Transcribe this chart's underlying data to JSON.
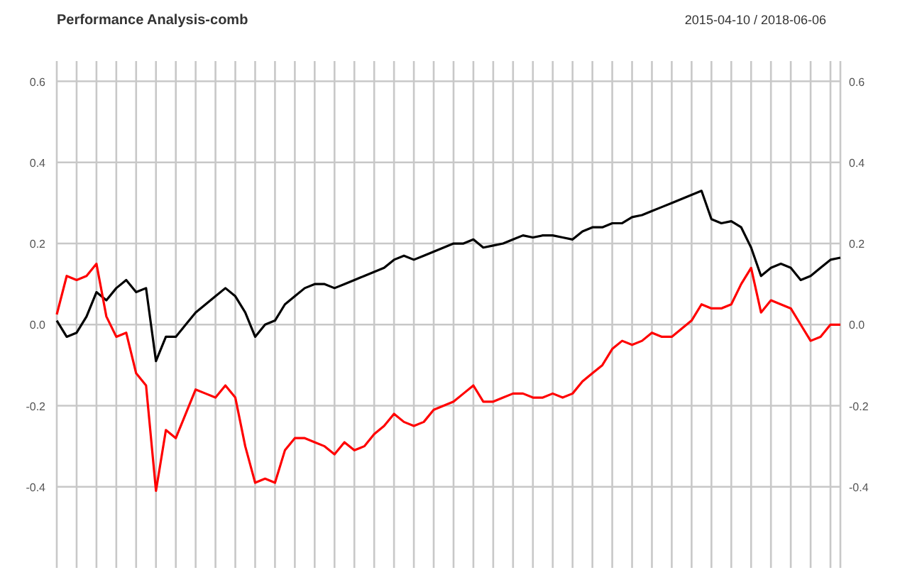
{
  "chart_data": {
    "type": "line",
    "title": "Performance Analysis-comb",
    "annotations": [
      "2015-04-10 / 2018-06-06"
    ],
    "categories": [
      null,
      null,
      null,
      null,
      null,
      null,
      null,
      null,
      null,
      null,
      null,
      null,
      null,
      null,
      null,
      null,
      null,
      null,
      null,
      null,
      null,
      null,
      null,
      null,
      null,
      null,
      null,
      null,
      null,
      null,
      null,
      null,
      null,
      null,
      null,
      null,
      null,
      null,
      null,
      null,
      null,
      null,
      null,
      null,
      null,
      null,
      null,
      null,
      null,
      null,
      null,
      null,
      null,
      null,
      null,
      null,
      null,
      null,
      null,
      null,
      null,
      null,
      null,
      null,
      null,
      null,
      null,
      null,
      null,
      null,
      null,
      null,
      null,
      null,
      null,
      null,
      null,
      null,
      null,
      null
    ],
    "series": [
      {
        "color": "#000000",
        "values": [
          0.01,
          -0.03,
          -0.02,
          0.02,
          0.08,
          0.06,
          0.09,
          0.11,
          0.08,
          0.09,
          -0.09,
          -0.03,
          -0.03,
          0.0,
          0.03,
          0.05,
          0.07,
          0.09,
          0.07,
          0.03,
          -0.03,
          0.0,
          0.01,
          0.05,
          0.07,
          0.09,
          0.1,
          0.1,
          0.09,
          0.1,
          0.11,
          0.12,
          0.13,
          0.14,
          0.16,
          0.17,
          0.16,
          0.17,
          0.18,
          0.19,
          0.2,
          0.2,
          0.21,
          0.19,
          0.195,
          0.2,
          0.21,
          0.22,
          0.215,
          0.22,
          0.22,
          0.215,
          0.21,
          0.23,
          0.24,
          0.24,
          0.25,
          0.25,
          0.265,
          0.27,
          0.28,
          0.29,
          0.3,
          0.31,
          0.32,
          0.33,
          0.26,
          0.25,
          0.255,
          0.24,
          0.19,
          0.12,
          0.14,
          0.15,
          0.14,
          0.11,
          0.12,
          0.14,
          0.16,
          0.165
        ]
      },
      {
        "color": "#ff0000",
        "values": [
          0.025,
          0.12,
          0.11,
          0.12,
          0.15,
          0.02,
          -0.03,
          -0.02,
          -0.12,
          -0.15,
          -0.41,
          -0.26,
          -0.28,
          -0.22,
          -0.16,
          -0.17,
          -0.18,
          -0.15,
          -0.18,
          -0.3,
          -0.39,
          -0.38,
          -0.39,
          -0.31,
          -0.28,
          -0.28,
          -0.29,
          -0.3,
          -0.32,
          -0.29,
          -0.31,
          -0.3,
          -0.27,
          -0.25,
          -0.22,
          -0.24,
          -0.25,
          -0.24,
          -0.21,
          -0.2,
          -0.19,
          -0.17,
          -0.15,
          -0.19,
          -0.19,
          -0.18,
          -0.17,
          -0.17,
          -0.18,
          -0.18,
          -0.17,
          -0.18,
          -0.17,
          -0.14,
          -0.12,
          -0.1,
          -0.06,
          -0.04,
          -0.05,
          -0.04,
          -0.02,
          -0.03,
          -0.03,
          -0.01,
          0.01,
          0.05,
          0.04,
          0.04,
          0.05,
          0.1,
          0.14,
          0.03,
          0.06,
          0.05,
          0.04,
          0.0,
          -0.04,
          -0.03,
          0.0,
          0.0
        ]
      }
    ],
    "ylim": [
      -0.6,
      0.65
    ],
    "yticks": [
      -0.4,
      -0.2,
      {
        "value": 0,
        "label": "0.0"
      },
      0.2,
      0.4,
      0.6
    ],
    "y2lim": [
      -0.6,
      0.65
    ],
    "y2ticks": [
      -0.4,
      -0.2,
      {
        "value": 0,
        "label": "0.0"
      },
      0.2,
      0.4,
      0.6
    ],
    "tick_labels": "y",
    "grid": true,
    "line_style": "solid"
  }
}
